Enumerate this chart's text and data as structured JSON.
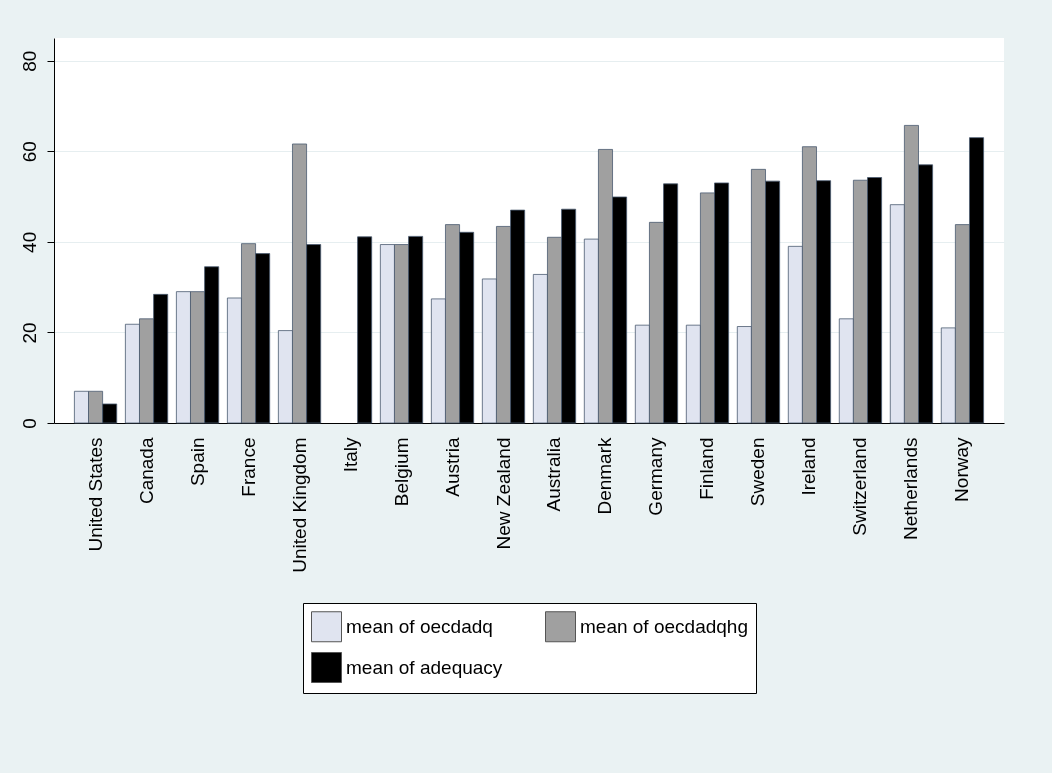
{
  "chart_data": {
    "type": "bar",
    "categories": [
      "United States",
      "Canada",
      "Spain",
      "France",
      "United Kingdom",
      "Italy",
      "Belgium",
      "Austria",
      "New Zealand",
      "Australia",
      "Denmark",
      "Germany",
      "Finland",
      "Sweden",
      "Ireland",
      "Switzerland",
      "Netherlands",
      "Norway"
    ],
    "series": [
      {
        "name": "mean of oecdadq",
        "color": "#e0e4f0",
        "values": [
          7,
          21.8,
          29,
          27.6,
          20.4,
          null,
          39.4,
          27.4,
          31.8,
          32.8,
          40.6,
          21.6,
          21.6,
          21.3,
          39,
          23,
          48.2,
          21
        ]
      },
      {
        "name": "mean of oecdadqhg",
        "color": "#a0a0a0",
        "values": [
          7,
          23,
          29,
          39.6,
          61.6,
          null,
          39.4,
          43.8,
          43.4,
          41,
          60.4,
          44.3,
          50.8,
          56,
          61,
          53.6,
          65.7,
          43.8
        ]
      },
      {
        "name": "mean of adequacy",
        "color": "#000000",
        "values": [
          4.2,
          28.4,
          34.5,
          37.4,
          39.4,
          41.1,
          41.2,
          42.1,
          47,
          47.2,
          49.9,
          52.8,
          53,
          53.4,
          53.5,
          54.2,
          57,
          63
        ]
      }
    ],
    "ylim": [
      0,
      85
    ],
    "yticks": [
      0,
      20,
      40,
      60,
      80
    ],
    "grid": "y",
    "legend": "bottom"
  }
}
